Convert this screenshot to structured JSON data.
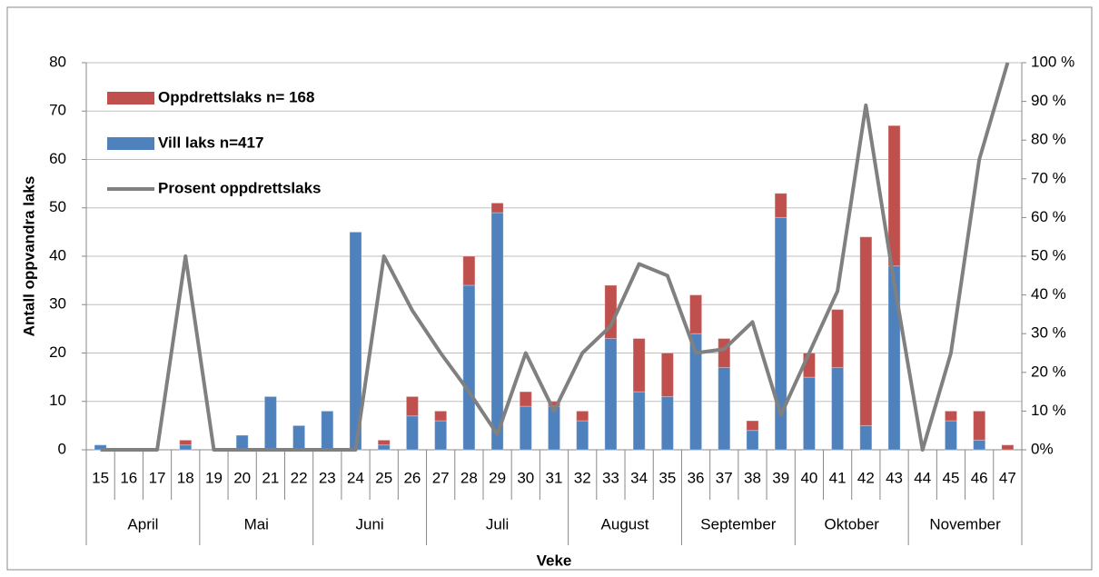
{
  "chart_data": {
    "type": "bar",
    "stacked": true,
    "x_label": "Veke",
    "y_label": "Antall oppvandra laks",
    "categories": [
      "15",
      "16",
      "17",
      "18",
      "19",
      "20",
      "21",
      "22",
      "23",
      "24",
      "25",
      "26",
      "27",
      "28",
      "29",
      "30",
      "31",
      "32",
      "33",
      "34",
      "35",
      "36",
      "37",
      "38",
      "39",
      "40",
      "41",
      "42",
      "43",
      "44",
      "45",
      "46",
      "47"
    ],
    "months": [
      "April",
      null,
      null,
      null,
      "Mai",
      null,
      null,
      null,
      "Juni",
      null,
      null,
      null,
      "Juli",
      null,
      null,
      null,
      null,
      "August",
      null,
      null,
      null,
      "September",
      null,
      null,
      null,
      "Oktober",
      null,
      null,
      null,
      "November",
      null,
      null,
      null
    ],
    "series": [
      {
        "name": "Vill laks n=417",
        "color": "#4f81bd",
        "type": "bar",
        "values": [
          1,
          0,
          0,
          1,
          0,
          3,
          11,
          5,
          8,
          45,
          1,
          7,
          6,
          34,
          49,
          9,
          9,
          6,
          23,
          12,
          11,
          24,
          17,
          4,
          48,
          15,
          17,
          5,
          38,
          0,
          6,
          2,
          0
        ]
      },
      {
        "name": "Oppdrettslaks n= 168",
        "color": "#c0504d",
        "type": "bar",
        "values": [
          0,
          0,
          0,
          1,
          0,
          0,
          0,
          0,
          0,
          0,
          1,
          4,
          2,
          6,
          2,
          3,
          1,
          2,
          11,
          11,
          9,
          8,
          6,
          2,
          5,
          5,
          12,
          39,
          29,
          0,
          2,
          6,
          1
        ]
      },
      {
        "name": "Prosent oppdrettslaks",
        "color": "#808080",
        "type": "line",
        "axis": "y2",
        "values": [
          0,
          0,
          0,
          50,
          0,
          0,
          0,
          0,
          0,
          0,
          50,
          36,
          25,
          15,
          4,
          25,
          10,
          25,
          32,
          48,
          45,
          25,
          26,
          33,
          9,
          25,
          41,
          89,
          43,
          0,
          25,
          75,
          100
        ]
      }
    ],
    "ylim": [
      0,
      80
    ],
    "yticks": [
      0,
      10,
      20,
      30,
      40,
      50,
      60,
      70,
      80
    ],
    "y2lim": [
      0,
      100
    ],
    "y2ticks": [
      {
        "value": 0,
        "label": "0%"
      },
      {
        "value": 10,
        "label": "10 %"
      },
      {
        "value": 20,
        "label": "20 %"
      },
      {
        "value": 30,
        "label": "30 %"
      },
      {
        "value": 40,
        "label": "40 %"
      },
      {
        "value": 50,
        "label": "50 %"
      },
      {
        "value": 60,
        "label": "60 %"
      },
      {
        "value": 70,
        "label": "70 %"
      },
      {
        "value": 80,
        "label": "80 %"
      },
      {
        "value": 90,
        "label": "90 %"
      },
      {
        "value": 100,
        "label": "100 %"
      }
    ],
    "grid": true,
    "legend": "upper-left"
  }
}
